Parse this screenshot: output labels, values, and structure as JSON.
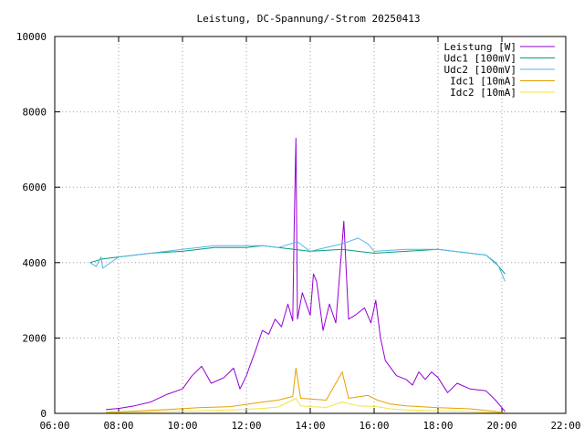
{
  "chart_data": {
    "type": "line",
    "title": "Leistung, DC-Spannung/-Strom 20250413",
    "xlabel": "",
    "ylabel": "",
    "xlim": [
      6,
      22
    ],
    "ylim": [
      0,
      10000
    ],
    "x_ticks": [
      "06:00",
      "08:00",
      "10:00",
      "12:00",
      "14:00",
      "16:00",
      "18:00",
      "20:00",
      "22:00"
    ],
    "y_ticks": [
      "0",
      "2000",
      "4000",
      "6000",
      "8000",
      "10000"
    ],
    "grid": true,
    "legend_position": "top-right",
    "series": [
      {
        "name": "Leistung [W]",
        "color": "#9400d3",
        "points": [
          [
            7.6,
            100
          ],
          [
            8.0,
            130
          ],
          [
            8.5,
            200
          ],
          [
            9.0,
            300
          ],
          [
            9.5,
            500
          ],
          [
            10.0,
            650
          ],
          [
            10.3,
            1000
          ],
          [
            10.6,
            1250
          ],
          [
            10.9,
            800
          ],
          [
            11.3,
            950
          ],
          [
            11.6,
            1200
          ],
          [
            11.8,
            650
          ],
          [
            12.0,
            1000
          ],
          [
            12.3,
            1700
          ],
          [
            12.5,
            2200
          ],
          [
            12.7,
            2100
          ],
          [
            12.9,
            2500
          ],
          [
            13.1,
            2300
          ],
          [
            13.3,
            2900
          ],
          [
            13.45,
            2450
          ],
          [
            13.5,
            5100
          ],
          [
            13.55,
            7300
          ],
          [
            13.6,
            2500
          ],
          [
            13.75,
            3200
          ],
          [
            14.0,
            2600
          ],
          [
            14.1,
            3700
          ],
          [
            14.2,
            3500
          ],
          [
            14.4,
            2200
          ],
          [
            14.6,
            2900
          ],
          [
            14.8,
            2400
          ],
          [
            14.95,
            4000
          ],
          [
            15.05,
            5100
          ],
          [
            15.2,
            2500
          ],
          [
            15.4,
            2600
          ],
          [
            15.7,
            2800
          ],
          [
            15.9,
            2400
          ],
          [
            16.05,
            3000
          ],
          [
            16.2,
            2000
          ],
          [
            16.35,
            1400
          ],
          [
            16.7,
            1000
          ],
          [
            17.0,
            900
          ],
          [
            17.2,
            750
          ],
          [
            17.4,
            1100
          ],
          [
            17.6,
            900
          ],
          [
            17.8,
            1100
          ],
          [
            18.0,
            950
          ],
          [
            18.3,
            550
          ],
          [
            18.6,
            800
          ],
          [
            19.0,
            650
          ],
          [
            19.5,
            600
          ],
          [
            19.8,
            350
          ],
          [
            20.1,
            50
          ]
        ]
      },
      {
        "name": "Udc1 [100mV]",
        "color": "#009e73",
        "points": [
          [
            7.1,
            4000
          ],
          [
            7.5,
            4100
          ],
          [
            8.0,
            4150
          ],
          [
            9.0,
            4250
          ],
          [
            10.0,
            4300
          ],
          [
            11.0,
            4400
          ],
          [
            12.0,
            4400
          ],
          [
            12.5,
            4450
          ],
          [
            13.0,
            4400
          ],
          [
            14.0,
            4300
          ],
          [
            15.0,
            4350
          ],
          [
            16.0,
            4250
          ],
          [
            17.0,
            4300
          ],
          [
            18.0,
            4350
          ],
          [
            19.0,
            4250
          ],
          [
            19.5,
            4200
          ],
          [
            19.8,
            4000
          ],
          [
            20.1,
            3700
          ]
        ]
      },
      {
        "name": "Udc2 [100mV]",
        "color": "#56b4e9",
        "points": [
          [
            7.1,
            4000
          ],
          [
            7.3,
            3900
          ],
          [
            7.45,
            4150
          ],
          [
            7.5,
            3850
          ],
          [
            8.0,
            4150
          ],
          [
            9.0,
            4250
          ],
          [
            10.0,
            4350
          ],
          [
            11.0,
            4450
          ],
          [
            12.0,
            4450
          ],
          [
            12.5,
            4450
          ],
          [
            13.0,
            4400
          ],
          [
            13.6,
            4550
          ],
          [
            14.0,
            4300
          ],
          [
            15.0,
            4500
          ],
          [
            15.5,
            4650
          ],
          [
            15.8,
            4500
          ],
          [
            16.0,
            4300
          ],
          [
            17.0,
            4350
          ],
          [
            18.0,
            4350
          ],
          [
            19.0,
            4250
          ],
          [
            19.5,
            4200
          ],
          [
            19.9,
            3900
          ],
          [
            20.1,
            3500
          ]
        ]
      },
      {
        "name": "Idc1 [10mA]",
        "color": "#e69f00",
        "points": [
          [
            7.6,
            30
          ],
          [
            8.5,
            60
          ],
          [
            9.5,
            100
          ],
          [
            10.5,
            150
          ],
          [
            11.5,
            180
          ],
          [
            12.5,
            300
          ],
          [
            13.0,
            350
          ],
          [
            13.45,
            450
          ],
          [
            13.55,
            1200
          ],
          [
            13.7,
            400
          ],
          [
            14.0,
            380
          ],
          [
            14.5,
            350
          ],
          [
            15.0,
            1100
          ],
          [
            15.2,
            400
          ],
          [
            15.8,
            480
          ],
          [
            16.1,
            350
          ],
          [
            16.5,
            250
          ],
          [
            17.0,
            200
          ],
          [
            18.0,
            150
          ],
          [
            19.0,
            120
          ],
          [
            19.8,
            50
          ],
          [
            20.1,
            10
          ]
        ]
      },
      {
        "name": "Idc2 [10mA]",
        "color": "#f0e442",
        "points": [
          [
            7.6,
            20
          ],
          [
            8.5,
            30
          ],
          [
            9.5,
            50
          ],
          [
            10.5,
            70
          ],
          [
            11.5,
            90
          ],
          [
            12.5,
            130
          ],
          [
            13.0,
            170
          ],
          [
            13.55,
            400
          ],
          [
            13.7,
            200
          ],
          [
            14.0,
            180
          ],
          [
            14.5,
            160
          ],
          [
            15.0,
            300
          ],
          [
            15.5,
            200
          ],
          [
            16.1,
            180
          ],
          [
            16.5,
            120
          ],
          [
            17.0,
            90
          ],
          [
            18.0,
            70
          ],
          [
            19.0,
            50
          ],
          [
            19.8,
            20
          ],
          [
            20.1,
            5
          ]
        ]
      }
    ]
  }
}
